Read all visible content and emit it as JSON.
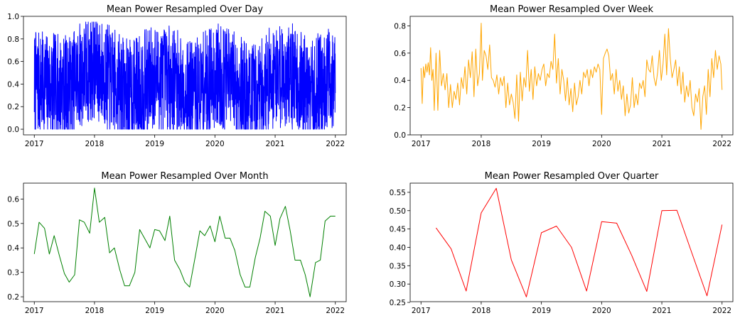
{
  "chart_data": [
    {
      "type": "line",
      "title": "Mean Power Resampled Over Day",
      "color": "#0000ff",
      "xlim": [
        2016.82,
        2022.18
      ],
      "ylim": [
        -0.05,
        1.0
      ],
      "xticks": [
        2017,
        2018,
        2019,
        2020,
        2021,
        2022
      ],
      "xtick_labels": [
        "2017",
        "2018",
        "2019",
        "2020",
        "2021",
        "2022"
      ],
      "yticks": [
        0.0,
        0.2,
        0.4,
        0.6,
        0.8,
        1.0
      ],
      "ytick_labels": [
        "0.0",
        "0.2",
        "0.4",
        "0.6",
        "0.8",
        "1.0"
      ],
      "series": [
        {
          "sampling": "daily",
          "x_start": 2017.0,
          "x_end": 2022.0,
          "count": 1826,
          "mean_profile": [
            [
              2017.0,
              0.4
            ],
            [
              2017.3,
              0.38
            ],
            [
              2017.6,
              0.36
            ],
            [
              2017.75,
              0.48
            ],
            [
              2018.0,
              0.55
            ],
            [
              2018.3,
              0.42
            ],
            [
              2018.6,
              0.32
            ],
            [
              2018.75,
              0.38
            ],
            [
              2019.0,
              0.46
            ],
            [
              2019.3,
              0.44
            ],
            [
              2019.6,
              0.3
            ],
            [
              2019.75,
              0.36
            ],
            [
              2020.0,
              0.48
            ],
            [
              2020.3,
              0.42
            ],
            [
              2020.6,
              0.28
            ],
            [
              2020.75,
              0.34
            ],
            [
              2021.0,
              0.5
            ],
            [
              2021.3,
              0.46
            ],
            [
              2021.6,
              0.3
            ],
            [
              2021.75,
              0.4
            ],
            [
              2022.0,
              0.48
            ]
          ],
          "min": 0.0,
          "max": 0.95
        }
      ]
    },
    {
      "type": "line",
      "title": "Mean Power Resampled Over Week",
      "color": "#ffa500",
      "xlim": [
        2016.82,
        2022.18
      ],
      "ylim": [
        0.0,
        0.87
      ],
      "xticks": [
        2017,
        2018,
        2019,
        2020,
        2021,
        2022
      ],
      "xtick_labels": [
        "2017",
        "2018",
        "2019",
        "2020",
        "2021",
        "2022"
      ],
      "yticks": [
        0.0,
        0.2,
        0.4,
        0.6,
        0.8
      ],
      "ytick_labels": [
        "0.0",
        "0.2",
        "0.4",
        "0.6",
        "0.8"
      ],
      "series": [
        {
          "x": [
            2017.0,
            2017.02,
            2017.04,
            2017.06,
            2017.08,
            2017.1,
            2017.12,
            2017.14,
            2017.16,
            2017.18,
            2017.2,
            2017.22,
            2017.25,
            2017.28,
            2017.31,
            2017.34,
            2017.37,
            2017.4,
            2017.43,
            2017.46,
            2017.49,
            2017.52,
            2017.55,
            2017.58,
            2017.61,
            2017.64,
            2017.67,
            2017.7,
            2017.73,
            2017.76,
            2017.79,
            2017.82,
            2017.85,
            2017.88,
            2017.91,
            2017.94,
            2017.97,
            2018.0,
            2018.02,
            2018.05,
            2018.08,
            2018.11,
            2018.14,
            2018.17,
            2018.2,
            2018.23,
            2018.26,
            2018.29,
            2018.32,
            2018.35,
            2018.38,
            2018.41,
            2018.44,
            2018.47,
            2018.5,
            2018.53,
            2018.56,
            2018.59,
            2018.62,
            2018.65,
            2018.68,
            2018.71,
            2018.74,
            2018.77,
            2018.8,
            2018.83,
            2018.86,
            2018.89,
            2018.92,
            2018.95,
            2018.98,
            2019.01,
            2019.04,
            2019.07,
            2019.1,
            2019.13,
            2019.16,
            2019.19,
            2019.22,
            2019.25,
            2019.28,
            2019.31,
            2019.34,
            2019.37,
            2019.4,
            2019.43,
            2019.46,
            2019.49,
            2019.52,
            2019.55,
            2019.58,
            2019.61,
            2019.64,
            2019.67,
            2019.7,
            2019.73,
            2019.76,
            2019.79,
            2019.82,
            2019.85,
            2019.88,
            2019.91,
            2019.94,
            2019.97,
            2020.0,
            2020.03,
            2020.06,
            2020.09,
            2020.12,
            2020.15,
            2020.18,
            2020.21,
            2020.24,
            2020.27,
            2020.3,
            2020.33,
            2020.36,
            2020.39,
            2020.42,
            2020.45,
            2020.48,
            2020.51,
            2020.54,
            2020.57,
            2020.6,
            2020.63,
            2020.66,
            2020.69,
            2020.72,
            2020.75,
            2020.78,
            2020.81,
            2020.84,
            2020.87,
            2020.9,
            2020.93,
            2020.96,
            2020.99,
            2021.02,
            2021.05,
            2021.08,
            2021.11,
            2021.14,
            2021.17,
            2021.2,
            2021.23,
            2021.26,
            2021.29,
            2021.32,
            2021.35,
            2021.38,
            2021.41,
            2021.44,
            2021.47,
            2021.5,
            2021.53,
            2021.56,
            2021.59,
            2021.62,
            2021.65,
            2021.68,
            2021.71,
            2021.74,
            2021.77,
            2021.8,
            2021.83,
            2021.86,
            2021.89,
            2021.92,
            2021.95,
            2021.98,
            2022.0
          ],
          "y": [
            0.49,
            0.23,
            0.5,
            0.42,
            0.52,
            0.46,
            0.53,
            0.44,
            0.64,
            0.4,
            0.48,
            0.18,
            0.6,
            0.18,
            0.62,
            0.36,
            0.45,
            0.33,
            0.45,
            0.2,
            0.37,
            0.2,
            0.32,
            0.26,
            0.38,
            0.22,
            0.42,
            0.34,
            0.5,
            0.3,
            0.55,
            0.42,
            0.61,
            0.28,
            0.63,
            0.36,
            0.45,
            0.82,
            0.4,
            0.62,
            0.58,
            0.48,
            0.66,
            0.42,
            0.4,
            0.35,
            0.44,
            0.3,
            0.42,
            0.36,
            0.43,
            0.2,
            0.38,
            0.22,
            0.3,
            0.24,
            0.12,
            0.44,
            0.1,
            0.46,
            0.25,
            0.42,
            0.35,
            0.62,
            0.32,
            0.48,
            0.26,
            0.5,
            0.36,
            0.45,
            0.4,
            0.48,
            0.52,
            0.36,
            0.45,
            0.42,
            0.54,
            0.48,
            0.74,
            0.38,
            0.56,
            0.3,
            0.48,
            0.4,
            0.25,
            0.42,
            0.22,
            0.34,
            0.17,
            0.38,
            0.22,
            0.28,
            0.4,
            0.3,
            0.46,
            0.42,
            0.48,
            0.36,
            0.48,
            0.42,
            0.5,
            0.46,
            0.52,
            0.48,
            0.15,
            0.56,
            0.6,
            0.63,
            0.58,
            0.4,
            0.45,
            0.3,
            0.48,
            0.32,
            0.4,
            0.26,
            0.36,
            0.14,
            0.3,
            0.16,
            0.22,
            0.42,
            0.2,
            0.3,
            0.22,
            0.38,
            0.34,
            0.4,
            0.28,
            0.55,
            0.48,
            0.46,
            0.58,
            0.42,
            0.36,
            0.46,
            0.62,
            0.4,
            0.52,
            0.74,
            0.44,
            0.78,
            0.56,
            0.42,
            0.48,
            0.55,
            0.36,
            0.5,
            0.3,
            0.46,
            0.24,
            0.36,
            0.28,
            0.4,
            0.2,
            0.14,
            0.3,
            0.24,
            0.34,
            0.04,
            0.28,
            0.36,
            0.15,
            0.48,
            0.28,
            0.56,
            0.42,
            0.62,
            0.48,
            0.58,
            0.52,
            0.33
          ]
        }
      ]
    },
    {
      "type": "line",
      "title": "Mean Power Resampled Over Month",
      "color": "#008000",
      "xlim": [
        2016.82,
        2022.18
      ],
      "ylim": [
        0.18,
        0.665
      ],
      "xticks": [
        2017,
        2018,
        2019,
        2020,
        2021,
        2022
      ],
      "xtick_labels": [
        "2017",
        "2018",
        "2019",
        "2020",
        "2021",
        "2022"
      ],
      "yticks": [
        0.2,
        0.3,
        0.4,
        0.5,
        0.6
      ],
      "ytick_labels": [
        "0.2",
        "0.3",
        "0.4",
        "0.5",
        "0.6"
      ],
      "series": [
        {
          "x": [
            2017.0,
            2017.08,
            2017.17,
            2017.25,
            2017.33,
            2017.42,
            2017.5,
            2017.58,
            2017.67,
            2017.75,
            2017.83,
            2017.92,
            2018.0,
            2018.08,
            2018.17,
            2018.25,
            2018.33,
            2018.42,
            2018.5,
            2018.58,
            2018.67,
            2018.75,
            2018.83,
            2018.92,
            2019.0,
            2019.08,
            2019.17,
            2019.25,
            2019.33,
            2019.42,
            2019.5,
            2019.58,
            2019.67,
            2019.75,
            2019.83,
            2019.92,
            2020.0,
            2020.08,
            2020.17,
            2020.25,
            2020.33,
            2020.42,
            2020.5,
            2020.58,
            2020.67,
            2020.75,
            2020.83,
            2020.92,
            2021.0,
            2021.08,
            2021.17,
            2021.25,
            2021.33,
            2021.42,
            2021.5,
            2021.58,
            2021.67,
            2021.75,
            2021.83,
            2021.92,
            2022.0
          ],
          "y": [
            0.375,
            0.505,
            0.48,
            0.375,
            0.45,
            0.365,
            0.295,
            0.26,
            0.29,
            0.515,
            0.505,
            0.46,
            0.645,
            0.505,
            0.525,
            0.38,
            0.4,
            0.31,
            0.245,
            0.245,
            0.3,
            0.475,
            0.44,
            0.4,
            0.475,
            0.47,
            0.43,
            0.53,
            0.35,
            0.31,
            0.26,
            0.24,
            0.36,
            0.47,
            0.45,
            0.49,
            0.425,
            0.53,
            0.44,
            0.44,
            0.39,
            0.29,
            0.24,
            0.24,
            0.36,
            0.44,
            0.55,
            0.53,
            0.41,
            0.52,
            0.57,
            0.47,
            0.35,
            0.35,
            0.29,
            0.2,
            0.34,
            0.35,
            0.51,
            0.53,
            0.53
          ]
        }
      ]
    },
    {
      "type": "line",
      "title": "Mean Power Resampled Over Quarter",
      "color": "#ff0000",
      "xlim": [
        2016.82,
        2022.18
      ],
      "ylim": [
        0.252,
        0.575
      ],
      "xticks": [
        2017,
        2018,
        2019,
        2020,
        2021,
        2022
      ],
      "xtick_labels": [
        "2017",
        "2018",
        "2019",
        "2020",
        "2021",
        "2022"
      ],
      "yticks": [
        0.25,
        0.3,
        0.35,
        0.4,
        0.45,
        0.5,
        0.55
      ],
      "ytick_labels": [
        "0.25",
        "0.30",
        "0.35",
        "0.40",
        "0.45",
        "0.50",
        "0.55"
      ],
      "series": [
        {
          "x": [
            2017.25,
            2017.5,
            2017.75,
            2018.0,
            2018.25,
            2018.5,
            2018.75,
            2019.0,
            2019.25,
            2019.5,
            2019.75,
            2020.0,
            2020.25,
            2020.5,
            2020.75,
            2021.0,
            2021.25,
            2021.5,
            2021.75,
            2022.0
          ],
          "y": [
            0.453,
            0.396,
            0.281,
            0.494,
            0.561,
            0.366,
            0.265,
            0.44,
            0.458,
            0.4,
            0.281,
            0.47,
            0.466,
            0.378,
            0.28,
            0.5,
            0.501,
            0.384,
            0.268,
            0.462
          ]
        }
      ]
    }
  ]
}
